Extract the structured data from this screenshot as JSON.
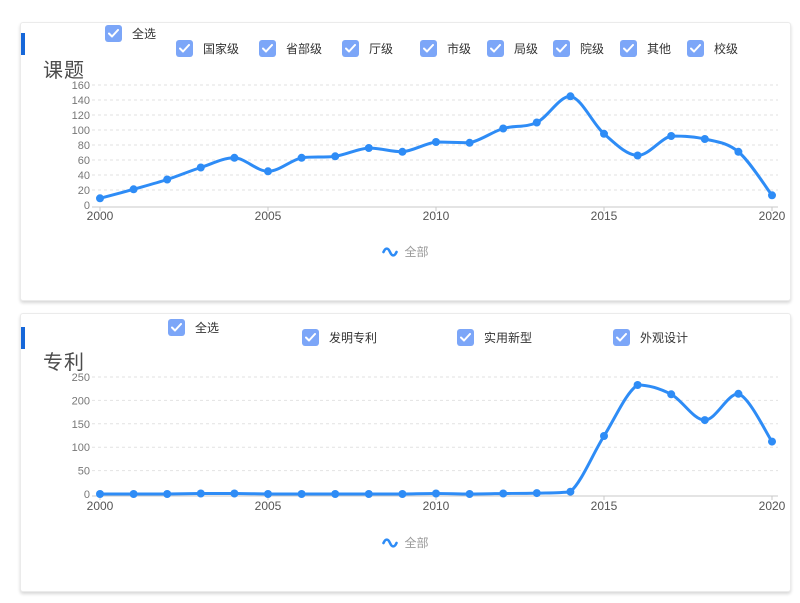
{
  "page": {
    "background": "#ffffff"
  },
  "colors": {
    "line": "#2e8cf6",
    "checkbox_fill": "#7ca6f8",
    "accent_bar": "#1667d9",
    "gridline": "#e2e2e2",
    "axis_line": "#c8c8c8",
    "y_label": "#777777",
    "x_label": "#555555",
    "legend_text": "#9a9a9a"
  },
  "panels": [
    {
      "title": "课题",
      "select_all": {
        "label": "全选",
        "checked": true
      },
      "filters": [
        {
          "label": "国家级",
          "checked": true
        },
        {
          "label": "省部级",
          "checked": true
        },
        {
          "label": "厅级",
          "checked": true
        },
        {
          "label": "市级",
          "checked": true
        },
        {
          "label": "局级",
          "checked": true
        },
        {
          "label": "院级",
          "checked": true
        },
        {
          "label": "其他",
          "checked": true
        },
        {
          "label": "校级",
          "checked": true
        }
      ],
      "legend": "全部"
    },
    {
      "title": "专利",
      "select_all": {
        "label": "全选",
        "checked": true
      },
      "filters": [
        {
          "label": "发明专利",
          "checked": true
        },
        {
          "label": "实用新型",
          "checked": true
        },
        {
          "label": "外观设计",
          "checked": true
        }
      ],
      "legend": "全部"
    }
  ],
  "chart_data": [
    {
      "type": "line",
      "title": "课题",
      "x": [
        2000,
        2001,
        2002,
        2003,
        2004,
        2005,
        2006,
        2007,
        2008,
        2009,
        2010,
        2011,
        2012,
        2013,
        2014,
        2015,
        2016,
        2017,
        2018,
        2019,
        2020
      ],
      "series": [
        {
          "name": "全部",
          "values": [
            9,
            21,
            34,
            50,
            63,
            45,
            63,
            65,
            76,
            71,
            84,
            83,
            102,
            110,
            145,
            95,
            66,
            92,
            88,
            71,
            13
          ]
        }
      ],
      "ylim": [
        0,
        160
      ],
      "ytick_step": 20,
      "xticks": [
        2000,
        2005,
        2010,
        2015,
        2020
      ],
      "grid": "dashed-horizontal",
      "smooth": true,
      "legend_position": "bottom"
    },
    {
      "type": "line",
      "title": "专利",
      "x": [
        2000,
        2001,
        2002,
        2003,
        2004,
        2005,
        2006,
        2007,
        2008,
        2009,
        2010,
        2011,
        2012,
        2013,
        2014,
        2015,
        2016,
        2017,
        2018,
        2019,
        2020
      ],
      "series": [
        {
          "name": "全部",
          "values": [
            0,
            0,
            0,
            1,
            1,
            0,
            0,
            0,
            0,
            0,
            1,
            0,
            1,
            2,
            5,
            124,
            233,
            213,
            158,
            214,
            112
          ]
        }
      ],
      "ylim": [
        0,
        250
      ],
      "ytick_step": 50,
      "xticks": [
        2000,
        2005,
        2010,
        2015,
        2020
      ],
      "grid": "dashed-horizontal",
      "smooth": true,
      "legend_position": "bottom"
    }
  ]
}
